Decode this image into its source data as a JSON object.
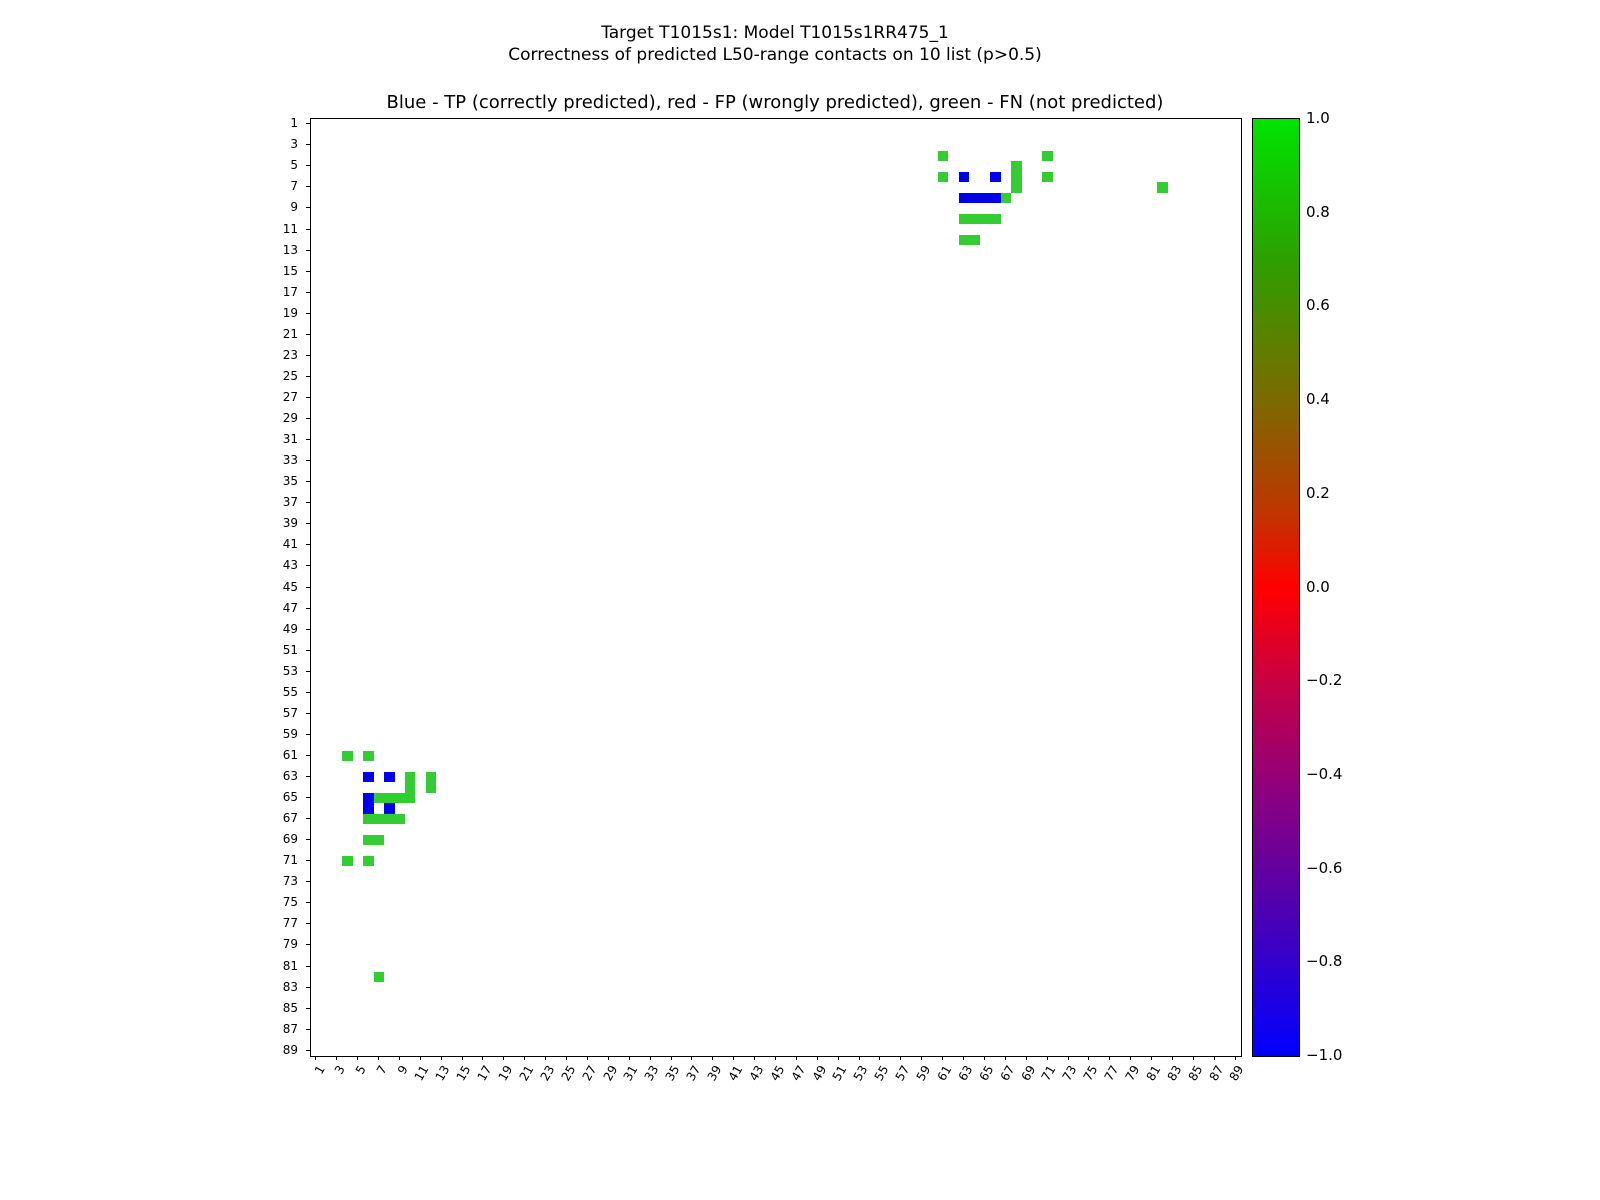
{
  "figure": {
    "suptitle_line1": "Target T1015s1: Model T1015s1RR475_1",
    "suptitle_line2": "Correctness of predicted L50-range contacts on 10 list (p>0.5)",
    "axes_title": "Blue - TP (correctly predicted), red - FP (wrongly predicted), green - FN (not predicted)"
  },
  "chart_data": {
    "type": "heatmap",
    "title": "Target T1015s1: Model T1015s1RR475_1",
    "subtitle": "Correctness of predicted L50-range contacts on 10 list (p>0.5)",
    "axes_title": "Blue - TP (correctly predicted), red - FP (wrongly predicted), green - FN (not predicted)",
    "x_range": [
      0.5,
      89.5
    ],
    "y_range": [
      0.5,
      89.5
    ],
    "y_inverted": true,
    "grid": false,
    "x_ticks": [
      "1",
      "3",
      "5",
      "7",
      "9",
      "11",
      "13",
      "15",
      "17",
      "19",
      "21",
      "23",
      "25",
      "27",
      "29",
      "31",
      "33",
      "35",
      "37",
      "39",
      "41",
      "43",
      "45",
      "47",
      "49",
      "51",
      "53",
      "55",
      "57",
      "59",
      "61",
      "63",
      "65",
      "67",
      "69",
      "71",
      "73",
      "75",
      "77",
      "79",
      "81",
      "83",
      "85",
      "87",
      "89"
    ],
    "y_ticks": [
      "1",
      "3",
      "5",
      "7",
      "9",
      "11",
      "13",
      "15",
      "17",
      "19",
      "21",
      "23",
      "25",
      "27",
      "29",
      "31",
      "33",
      "35",
      "37",
      "39",
      "41",
      "43",
      "45",
      "47",
      "49",
      "51",
      "53",
      "55",
      "57",
      "59",
      "61",
      "63",
      "65",
      "67",
      "69",
      "71",
      "73",
      "75",
      "77",
      "79",
      "81",
      "83",
      "85",
      "87",
      "89"
    ],
    "legend": {
      "TP": "TP (correctly predicted) - blue",
      "FP": "FP (wrongly predicted) - red",
      "FN": "FN (not predicted) - green"
    },
    "colors": {
      "TP": "#0000ee",
      "FP": "#ee0000",
      "FN": "#33cc33"
    },
    "points": [
      {
        "x": 61,
        "y": 4,
        "t": "FN"
      },
      {
        "x": 71,
        "y": 4,
        "t": "FN"
      },
      {
        "x": 68,
        "y": 5,
        "t": "FN"
      },
      {
        "x": 61,
        "y": 6,
        "t": "FN"
      },
      {
        "x": 63,
        "y": 6,
        "t": "TP"
      },
      {
        "x": 66,
        "y": 6,
        "t": "TP"
      },
      {
        "x": 68,
        "y": 6,
        "t": "FN"
      },
      {
        "x": 71,
        "y": 6,
        "t": "FN"
      },
      {
        "x": 68,
        "y": 7,
        "t": "FN"
      },
      {
        "x": 82,
        "y": 7,
        "t": "FN"
      },
      {
        "x": 63,
        "y": 8,
        "t": "TP"
      },
      {
        "x": 64,
        "y": 8,
        "t": "TP"
      },
      {
        "x": 65,
        "y": 8,
        "t": "TP"
      },
      {
        "x": 66,
        "y": 8,
        "t": "TP"
      },
      {
        "x": 67,
        "y": 8,
        "t": "FN"
      },
      {
        "x": 63,
        "y": 10,
        "t": "FN"
      },
      {
        "x": 64,
        "y": 10,
        "t": "FN"
      },
      {
        "x": 65,
        "y": 10,
        "t": "FN"
      },
      {
        "x": 66,
        "y": 10,
        "t": "FN"
      },
      {
        "x": 63,
        "y": 12,
        "t": "FN"
      },
      {
        "x": 64,
        "y": 12,
        "t": "FN"
      },
      {
        "x": 4,
        "y": 61,
        "t": "FN"
      },
      {
        "x": 6,
        "y": 61,
        "t": "FN"
      },
      {
        "x": 6,
        "y": 63,
        "t": "TP"
      },
      {
        "x": 8,
        "y": 63,
        "t": "TP"
      },
      {
        "x": 10,
        "y": 63,
        "t": "FN"
      },
      {
        "x": 12,
        "y": 63,
        "t": "FN"
      },
      {
        "x": 10,
        "y": 64,
        "t": "FN"
      },
      {
        "x": 12,
        "y": 64,
        "t": "FN"
      },
      {
        "x": 6,
        "y": 65,
        "t": "TP"
      },
      {
        "x": 7,
        "y": 65,
        "t": "FN"
      },
      {
        "x": 8,
        "y": 65,
        "t": "FN"
      },
      {
        "x": 9,
        "y": 65,
        "t": "FN"
      },
      {
        "x": 10,
        "y": 65,
        "t": "FN"
      },
      {
        "x": 6,
        "y": 66,
        "t": "TP"
      },
      {
        "x": 8,
        "y": 66,
        "t": "TP"
      },
      {
        "x": 6,
        "y": 67,
        "t": "FN"
      },
      {
        "x": 7,
        "y": 67,
        "t": "FN"
      },
      {
        "x": 8,
        "y": 67,
        "t": "FN"
      },
      {
        "x": 9,
        "y": 67,
        "t": "FN"
      },
      {
        "x": 6,
        "y": 69,
        "t": "FN"
      },
      {
        "x": 7,
        "y": 69,
        "t": "FN"
      },
      {
        "x": 4,
        "y": 71,
        "t": "FN"
      },
      {
        "x": 6,
        "y": 71,
        "t": "FN"
      },
      {
        "x": 7,
        "y": 82,
        "t": "FN"
      }
    ],
    "colorbar": {
      "ticks": [
        "1.0",
        "0.8",
        "0.6",
        "0.4",
        "0.2",
        "0.0",
        "−0.2",
        "−0.4",
        "−0.6",
        "−0.8",
        "−1.0"
      ],
      "gradient": [
        {
          "pos": 0.0,
          "color": "#00e400"
        },
        {
          "pos": 0.15,
          "color": "#2da000"
        },
        {
          "pos": 0.3,
          "color": "#7c6a00"
        },
        {
          "pos": 0.42,
          "color": "#c03500"
        },
        {
          "pos": 0.5,
          "color": "#ff0000"
        },
        {
          "pos": 0.6,
          "color": "#c80043"
        },
        {
          "pos": 0.72,
          "color": "#8c0080"
        },
        {
          "pos": 0.85,
          "color": "#4b00b4"
        },
        {
          "pos": 1.0,
          "color": "#0000ff"
        }
      ]
    }
  }
}
